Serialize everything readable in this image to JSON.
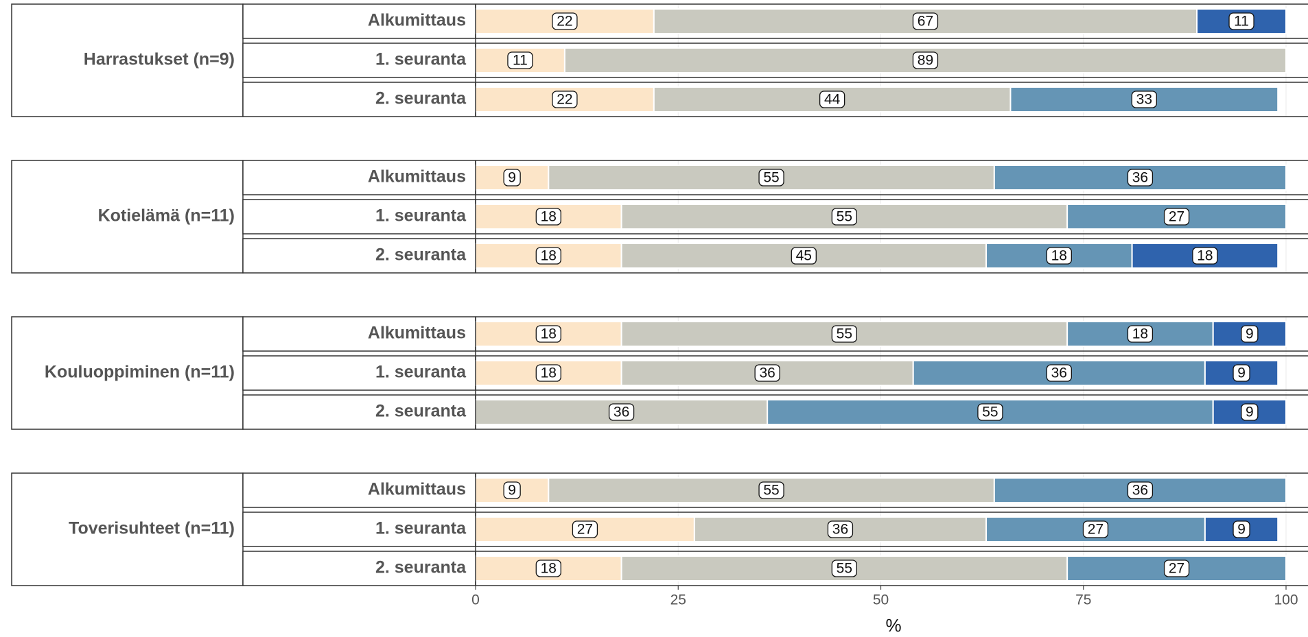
{
  "chart_data": {
    "type": "bar",
    "orientation": "horizontal",
    "stacked": true,
    "grid": true,
    "xlabel": "%",
    "xlim": [
      0,
      100
    ],
    "xticks": [
      0,
      25,
      50,
      75,
      100
    ],
    "facets": [
      {
        "label": "Harrastukset (n=9)",
        "categories": [
          "Alkumittaus",
          "1. seuranta",
          "2. seuranta"
        ],
        "series": [
          {
            "color": "#fce5c8",
            "values": [
              22,
              11,
              22
            ]
          },
          {
            "color": "#c9c9bf",
            "values": [
              67,
              89,
              44
            ]
          },
          {
            "color": "#6595b5",
            "values": [
              null,
              null,
              33
            ]
          },
          {
            "color": "#2f63ad",
            "values": [
              11,
              null,
              null
            ]
          }
        ]
      },
      {
        "label": "Kotielämä (n=11)",
        "categories": [
          "Alkumittaus",
          "1. seuranta",
          "2. seuranta"
        ],
        "series": [
          {
            "color": "#fce5c8",
            "values": [
              9,
              18,
              18
            ]
          },
          {
            "color": "#c9c9bf",
            "values": [
              55,
              55,
              45
            ]
          },
          {
            "color": "#6595b5",
            "values": [
              36,
              27,
              18
            ]
          },
          {
            "color": "#2f63ad",
            "values": [
              null,
              null,
              18
            ]
          }
        ]
      },
      {
        "label": "Kouluoppiminen (n=11)",
        "categories": [
          "Alkumittaus",
          "1. seuranta",
          "2. seuranta"
        ],
        "series": [
          {
            "color": "#fce5c8",
            "values": [
              18,
              18,
              null
            ]
          },
          {
            "color": "#c9c9bf",
            "values": [
              55,
              36,
              36
            ]
          },
          {
            "color": "#6595b5",
            "values": [
              18,
              36,
              55
            ]
          },
          {
            "color": "#2f63ad",
            "values": [
              9,
              9,
              9
            ]
          }
        ]
      },
      {
        "label": "Toverisuhteet (n=11)",
        "categories": [
          "Alkumittaus",
          "1. seuranta",
          "2. seuranta"
        ],
        "series": [
          {
            "color": "#fce5c8",
            "values": [
              9,
              27,
              18
            ]
          },
          {
            "color": "#c9c9bf",
            "values": [
              55,
              36,
              55
            ]
          },
          {
            "color": "#6595b5",
            "values": [
              36,
              27,
              27
            ]
          },
          {
            "color": "#2f63ad",
            "values": [
              null,
              9,
              null
            ]
          }
        ]
      }
    ]
  }
}
